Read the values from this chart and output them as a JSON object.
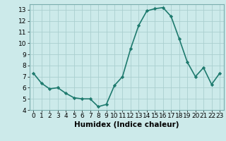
{
  "x": [
    0,
    1,
    2,
    3,
    4,
    5,
    6,
    7,
    8,
    9,
    10,
    11,
    12,
    13,
    14,
    15,
    16,
    17,
    18,
    19,
    20,
    21,
    22,
    23
  ],
  "y": [
    7.3,
    6.4,
    5.9,
    6.0,
    5.5,
    5.1,
    5.0,
    5.0,
    4.3,
    4.5,
    6.2,
    7.0,
    9.5,
    11.6,
    12.9,
    13.1,
    13.2,
    12.4,
    10.4,
    8.3,
    7.0,
    7.8,
    6.3,
    7.3
  ],
  "line_color": "#1e7a6e",
  "marker": "D",
  "marker_size": 2.2,
  "bg_color": "#cceaea",
  "grid_color": "#aacfcf",
  "xlabel": "Humidex (Indice chaleur)",
  "xlabel_fontsize": 7.5,
  "tick_fontsize": 6.5,
  "ylim": [
    4,
    13.5
  ],
  "yticks": [
    4,
    5,
    6,
    7,
    8,
    9,
    10,
    11,
    12,
    13
  ],
  "xlim": [
    -0.5,
    23.5
  ],
  "xticks": [
    0,
    1,
    2,
    3,
    4,
    5,
    6,
    7,
    8,
    9,
    10,
    11,
    12,
    13,
    14,
    15,
    16,
    17,
    18,
    19,
    20,
    21,
    22,
    23
  ],
  "linewidth": 1.2
}
